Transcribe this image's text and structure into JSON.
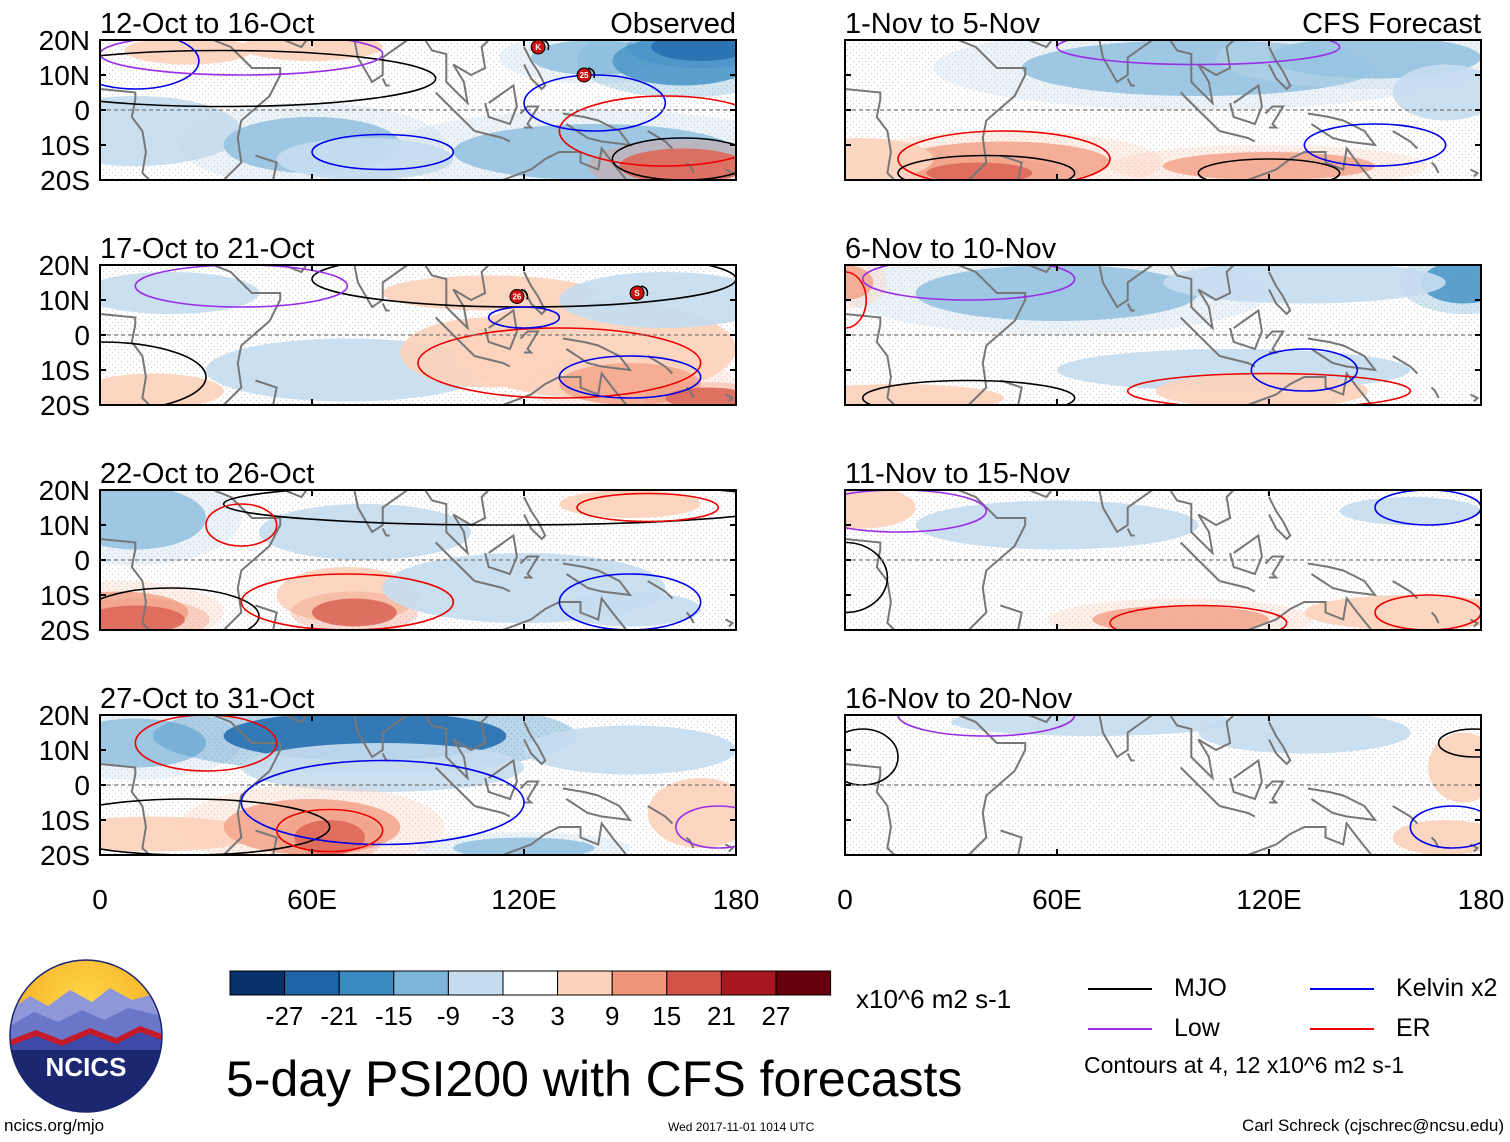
{
  "chart_data": {
    "type": "heatmap",
    "title": "5-day PSI200 with CFS forecasts",
    "columns": [
      {
        "header": "Observed",
        "panels": [
          "12-Oct to 16-Oct",
          "17-Oct to 21-Oct",
          "22-Oct to 26-Oct",
          "27-Oct to 31-Oct"
        ]
      },
      {
        "header": "CFS Forecast",
        "panels": [
          "1-Nov to 5-Nov",
          "6-Nov to 10-Nov",
          "11-Nov to 15-Nov",
          "16-Nov to 20-Nov"
        ]
      }
    ],
    "lat_ticks": [
      "20N",
      "10N",
      "0",
      "10S",
      "20S"
    ],
    "lat_range": [
      -20,
      20
    ],
    "lon_ticks": [
      "0",
      "60E",
      "120E",
      "180"
    ],
    "lon_range": [
      0,
      180
    ],
    "colorbar": {
      "tick_labels": [
        "-27",
        "-21",
        "-15",
        "-9",
        "-3",
        "3",
        "9",
        "15",
        "21",
        "27"
      ],
      "colors": [
        "#08306b",
        "#1f64a8",
        "#3a8ac2",
        "#7eb6da",
        "#c6dcef",
        "#ffffff",
        "#fcd2bc",
        "#f0957a",
        "#d3534a",
        "#a8161f",
        "#67000d"
      ],
      "units": "x10^6 m2 s-1"
    },
    "legend": [
      {
        "label": "MJO",
        "color": "#000000"
      },
      {
        "label": "Kelvin x2",
        "color": "#0000ee"
      },
      {
        "label": "Low",
        "color": "#9a2ee6"
      },
      {
        "label": "ER",
        "color": "#ee0000"
      }
    ],
    "contour_note": "Contours at 4, 12 x10^6 m2 s-1",
    "storm_markers": [
      {
        "panel": 0,
        "label": "K",
        "lon": 124,
        "lat": 18
      },
      {
        "panel": 0,
        "label": "25",
        "lon": 137,
        "lat": 10
      },
      {
        "panel": 1,
        "label": "26",
        "lon": 118,
        "lat": 11
      },
      {
        "panel": 1,
        "label": "S",
        "lon": 152,
        "lat": 12
      }
    ]
  },
  "footer": {
    "site": "ncics.org/mjo",
    "timestamp": "Wed 2017-11-01 1014 UTC",
    "author": "Carl Schreck (cjschrec@ncsu.edu)"
  },
  "logo": {
    "text": "NCICS"
  }
}
